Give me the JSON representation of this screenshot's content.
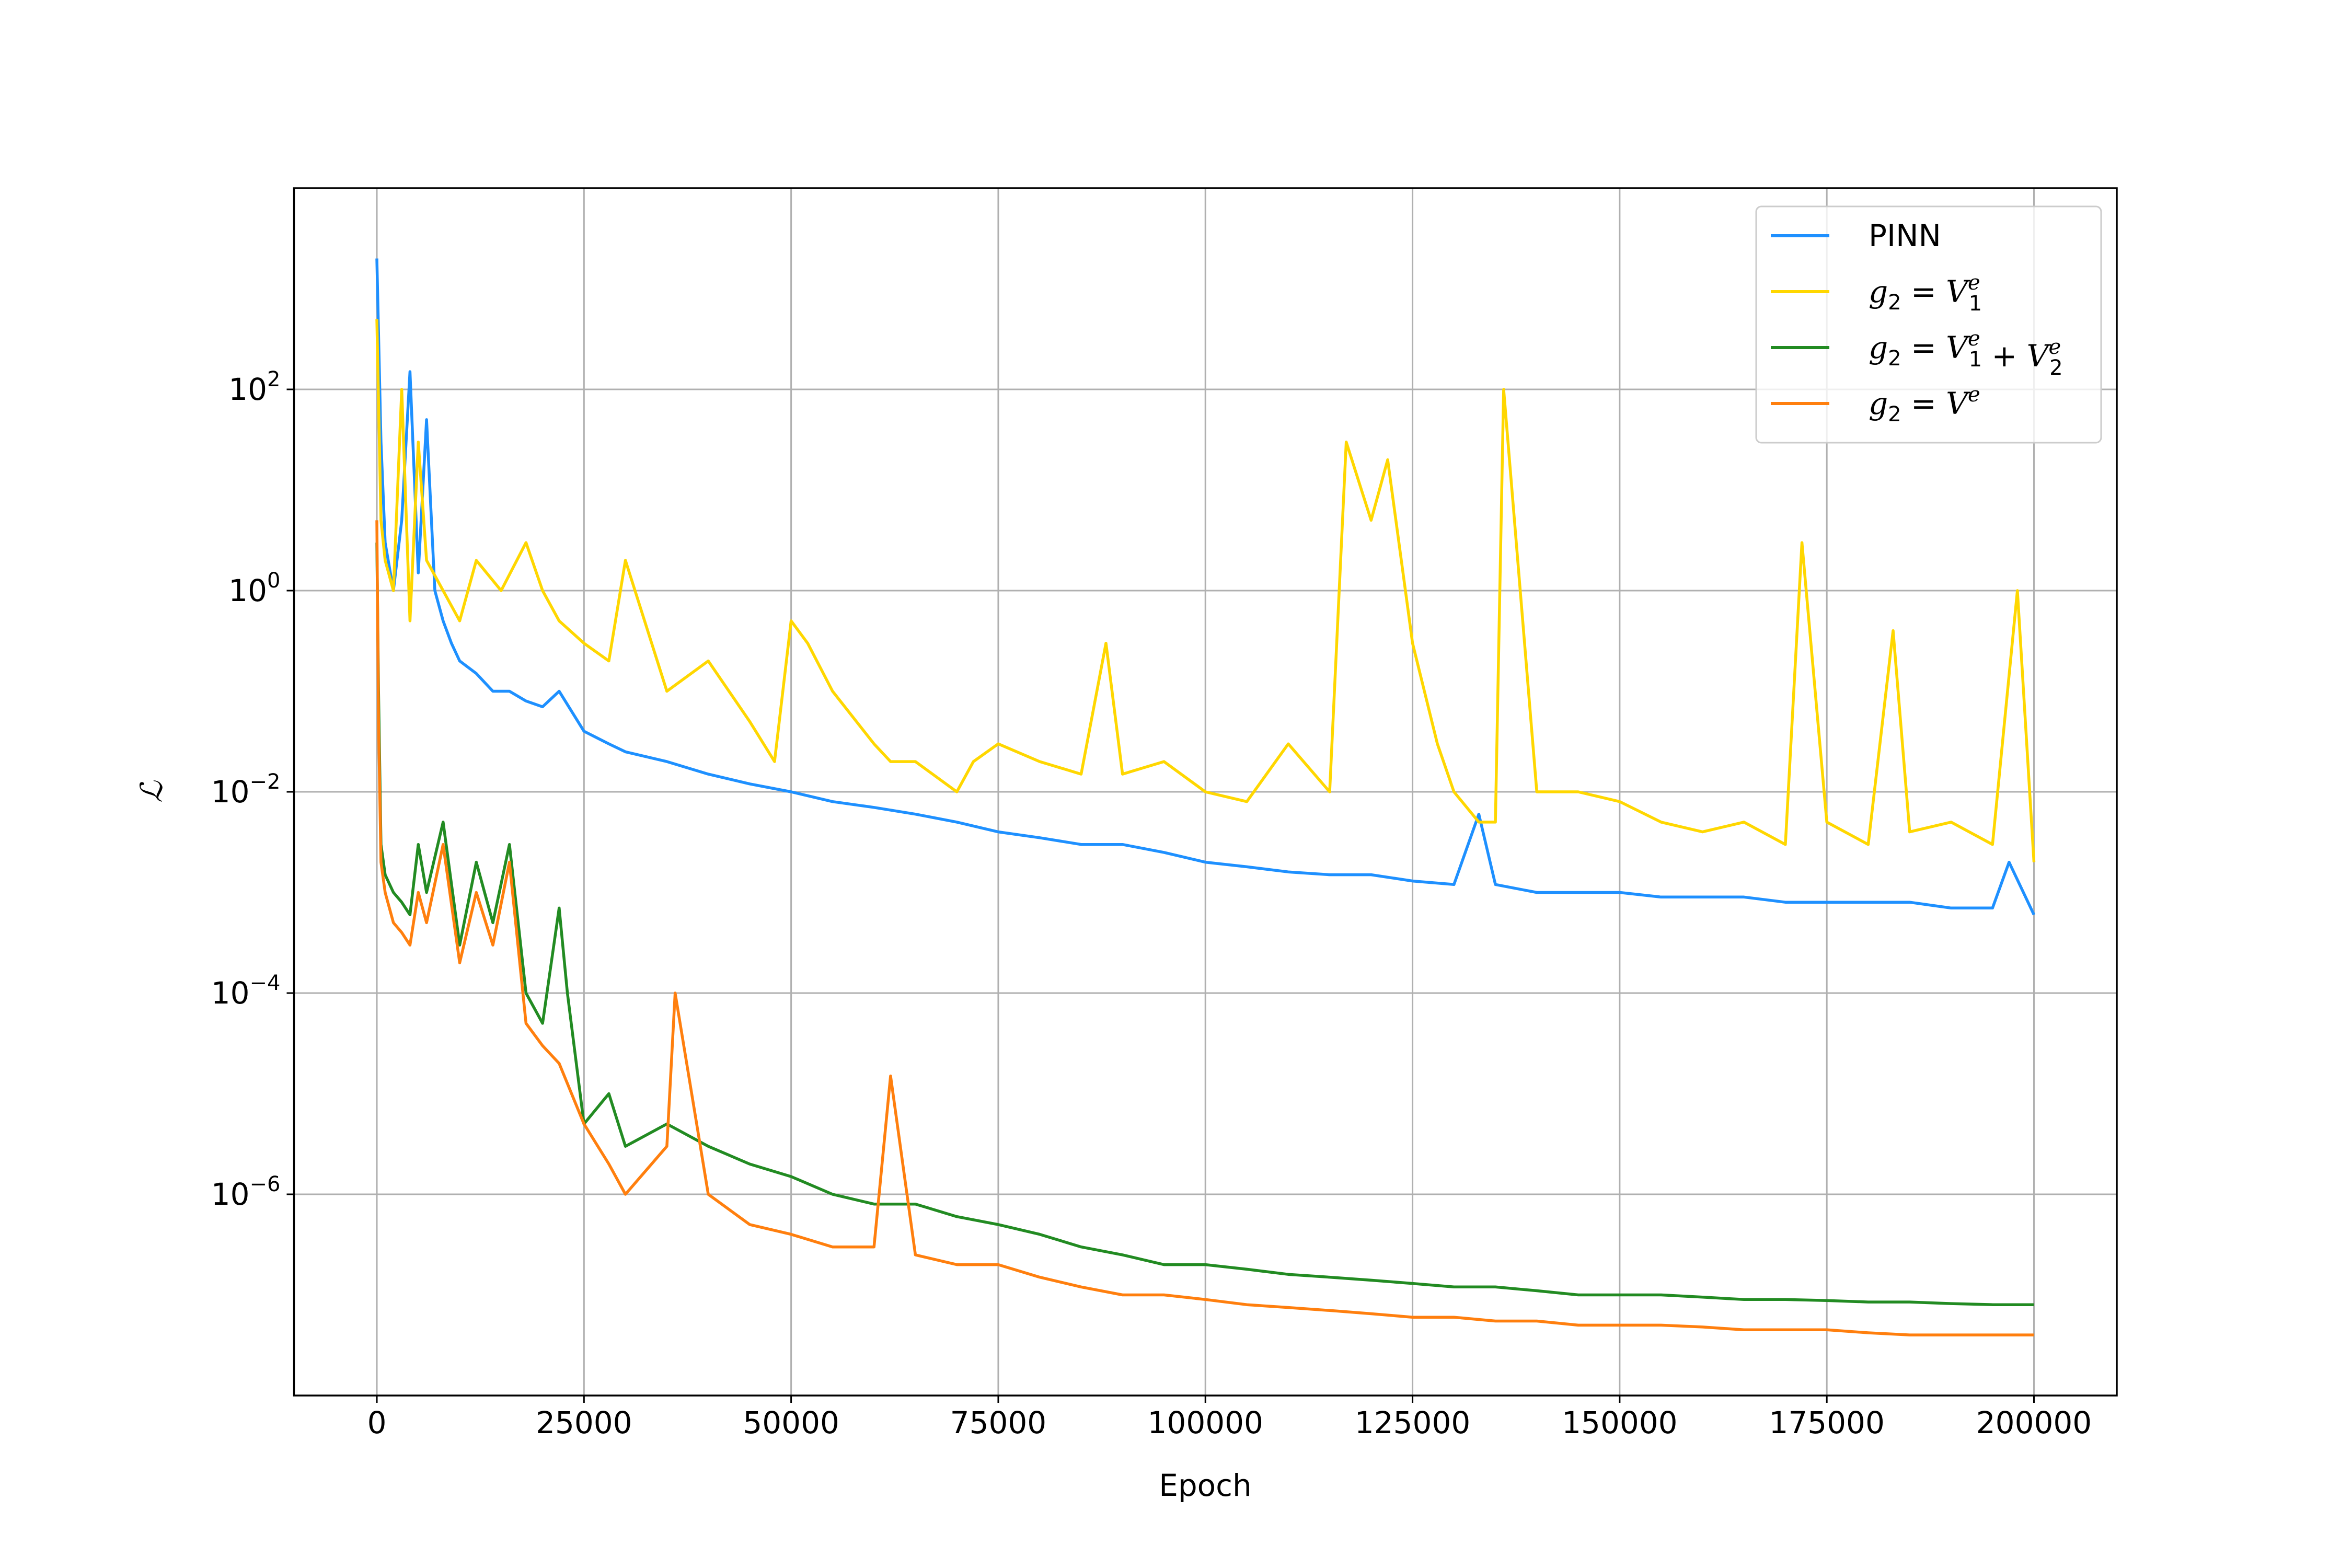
{
  "chart_data": {
    "type": "line",
    "title": "",
    "xlabel": "Epoch",
    "ylabel": "ℒ",
    "yscale": "log",
    "xlim": [
      -10000,
      210000
    ],
    "ylim": [
      1e-08,
      10000.0
    ],
    "grid": true,
    "legend_position": "top-right",
    "x_ticks": [
      {
        "value": 0,
        "label": "0"
      },
      {
        "value": 25000,
        "label": "25000"
      },
      {
        "value": 50000,
        "label": "50000"
      },
      {
        "value": 75000,
        "label": "75000"
      },
      {
        "value": 100000,
        "label": "100000"
      },
      {
        "value": 125000,
        "label": "125000"
      },
      {
        "value": 150000,
        "label": "150000"
      },
      {
        "value": 175000,
        "label": "175000"
      },
      {
        "value": 200000,
        "label": "200000"
      }
    ],
    "y_ticks": [
      {
        "value": 100,
        "base": "10",
        "exp": "2"
      },
      {
        "value": 1,
        "base": "10",
        "exp": "0"
      },
      {
        "value": 0.01,
        "base": "10",
        "exp": "−2"
      },
      {
        "value": 0.0001,
        "base": "10",
        "exp": "−4"
      },
      {
        "value": 1e-06,
        "base": "10",
        "exp": "−6"
      }
    ],
    "series": [
      {
        "name": "PINN",
        "legend": {
          "base": "PINN"
        },
        "color": "#1e90ff",
        "x": [
          0,
          500,
          1000,
          2000,
          3000,
          4000,
          5000,
          6000,
          7000,
          8000,
          9000,
          10000,
          12000,
          14000,
          16000,
          18000,
          20000,
          22000,
          25000,
          28000,
          30000,
          35000,
          40000,
          45000,
          50000,
          55000,
          60000,
          65000,
          70000,
          75000,
          80000,
          85000,
          90000,
          95000,
          100000,
          105000,
          110000,
          115000,
          120000,
          125000,
          130000,
          133000,
          135000,
          140000,
          145000,
          150000,
          155000,
          160000,
          165000,
          170000,
          175000,
          180000,
          185000,
          190000,
          195000,
          197000,
          200000
        ],
        "y": [
          2000,
          30,
          3,
          1,
          5,
          150,
          1.5,
          50,
          1,
          0.5,
          0.3,
          0.2,
          0.15,
          0.1,
          0.1,
          0.08,
          0.07,
          0.1,
          0.04,
          0.03,
          0.025,
          0.02,
          0.015,
          0.012,
          0.01,
          0.008,
          0.007,
          0.006,
          0.005,
          0.004,
          0.0035,
          0.003,
          0.003,
          0.0025,
          0.002,
          0.0018,
          0.0016,
          0.0015,
          0.0015,
          0.0013,
          0.0012,
          0.006,
          0.0012,
          0.001,
          0.001,
          0.001,
          0.0009,
          0.0009,
          0.0009,
          0.0008,
          0.0008,
          0.0008,
          0.0008,
          0.0007,
          0.0007,
          0.002,
          0.0006
        ]
      },
      {
        "name": "g2 = V1e",
        "legend": {
          "base": "g",
          "sub": "2",
          "eq": " = ",
          "terms": [
            {
              "base": "V",
              "sup": "e",
              "sub": "1"
            }
          ]
        },
        "color": "#ffd700",
        "x": [
          0,
          500,
          1000,
          2000,
          3000,
          4000,
          5000,
          6000,
          8000,
          10000,
          12000,
          15000,
          18000,
          20000,
          22000,
          25000,
          28000,
          30000,
          35000,
          40000,
          45000,
          48000,
          50000,
          52000,
          55000,
          60000,
          62000,
          65000,
          70000,
          72000,
          75000,
          80000,
          85000,
          88000,
          90000,
          95000,
          100000,
          105000,
          110000,
          115000,
          117000,
          120000,
          122000,
          125000,
          128000,
          130000,
          133000,
          135000,
          136000,
          140000,
          145000,
          150000,
          155000,
          160000,
          165000,
          170000,
          172000,
          175000,
          180000,
          183000,
          185000,
          190000,
          195000,
          198000,
          200000
        ],
        "y": [
          500,
          5,
          2,
          1,
          100,
          0.5,
          30,
          2,
          1,
          0.5,
          2,
          1,
          3,
          1,
          0.5,
          0.3,
          0.2,
          2,
          0.1,
          0.2,
          0.05,
          0.02,
          0.5,
          0.3,
          0.1,
          0.03,
          0.02,
          0.02,
          0.01,
          0.02,
          0.03,
          0.02,
          0.015,
          0.3,
          0.015,
          0.02,
          0.01,
          0.008,
          0.03,
          0.01,
          30,
          5,
          20,
          0.3,
          0.03,
          0.01,
          0.005,
          0.005,
          100,
          0.01,
          0.01,
          0.008,
          0.005,
          0.004,
          0.005,
          0.003,
          3,
          0.005,
          0.003,
          0.4,
          0.004,
          0.005,
          0.003,
          1,
          0.002
        ]
      },
      {
        "name": "g2 = V1e + V2e",
        "legend": {
          "base": "g",
          "sub": "2",
          "eq": " = ",
          "terms": [
            {
              "base": "V",
              "sup": "e",
              "sub": "1"
            },
            {
              "base": "V",
              "sup": "e",
              "sub": "2"
            }
          ]
        },
        "color": "#228b22",
        "x": [
          0,
          200,
          500,
          1000,
          2000,
          3000,
          4000,
          5000,
          6000,
          8000,
          10000,
          12000,
          14000,
          16000,
          18000,
          20000,
          22000,
          23000,
          25000,
          28000,
          30000,
          35000,
          40000,
          45000,
          50000,
          55000,
          60000,
          65000,
          70000,
          75000,
          80000,
          85000,
          90000,
          95000,
          100000,
          105000,
          110000,
          115000,
          120000,
          125000,
          130000,
          135000,
          140000,
          145000,
          150000,
          155000,
          160000,
          165000,
          170000,
          175000,
          180000,
          185000,
          190000,
          195000,
          200000
        ],
        "y": [
          3,
          0.1,
          0.003,
          0.0015,
          0.001,
          0.0008,
          0.0006,
          0.003,
          0.001,
          0.005,
          0.0003,
          0.002,
          0.0005,
          0.003,
          0.0001,
          5e-05,
          0.0007,
          0.0001,
          5e-06,
          1e-05,
          3e-06,
          5e-06,
          3e-06,
          2e-06,
          1.5e-06,
          1e-06,
          8e-07,
          8e-07,
          6e-07,
          5e-07,
          4e-07,
          3e-07,
          2.5e-07,
          2e-07,
          2e-07,
          1.8e-07,
          1.6e-07,
          1.5e-07,
          1.4e-07,
          1.3e-07,
          1.2e-07,
          1.2e-07,
          1.1e-07,
          1e-07,
          1e-07,
          1e-07,
          9.5e-08,
          9e-08,
          9e-08,
          8.8e-08,
          8.5e-08,
          8.5e-08,
          8.2e-08,
          8e-08,
          8e-08
        ]
      },
      {
        "name": "g2 = Ve",
        "legend": {
          "base": "g",
          "sub": "2",
          "eq": " = ",
          "terms": [
            {
              "base": "V",
              "sup": "e"
            }
          ]
        },
        "color": "#ff7f0e",
        "x": [
          0,
          200,
          500,
          1000,
          2000,
          3000,
          4000,
          5000,
          6000,
          8000,
          10000,
          12000,
          14000,
          16000,
          18000,
          20000,
          22000,
          25000,
          28000,
          30000,
          35000,
          36000,
          40000,
          45000,
          50000,
          55000,
          60000,
          62000,
          65000,
          70000,
          75000,
          80000,
          85000,
          90000,
          95000,
          100000,
          105000,
          110000,
          115000,
          120000,
          125000,
          130000,
          135000,
          140000,
          145000,
          150000,
          155000,
          160000,
          165000,
          170000,
          175000,
          180000,
          185000,
          190000,
          195000,
          200000
        ],
        "y": [
          5,
          0.05,
          0.002,
          0.001,
          0.0005,
          0.0004,
          0.0003,
          0.001,
          0.0005,
          0.003,
          0.0002,
          0.001,
          0.0003,
          0.002,
          5e-05,
          3e-05,
          2e-05,
          5e-06,
          2e-06,
          1e-06,
          3e-06,
          0.0001,
          1e-06,
          5e-07,
          4e-07,
          3e-07,
          3e-07,
          1.5e-05,
          2.5e-07,
          2e-07,
          2e-07,
          1.5e-07,
          1.2e-07,
          1e-07,
          1e-07,
          9e-08,
          8e-08,
          7.5e-08,
          7e-08,
          6.5e-08,
          6e-08,
          6e-08,
          5.5e-08,
          5.5e-08,
          5e-08,
          5e-08,
          5e-08,
          4.8e-08,
          4.5e-08,
          4.5e-08,
          4.5e-08,
          4.2e-08,
          4e-08,
          4e-08,
          4e-08,
          4e-08
        ]
      }
    ]
  }
}
